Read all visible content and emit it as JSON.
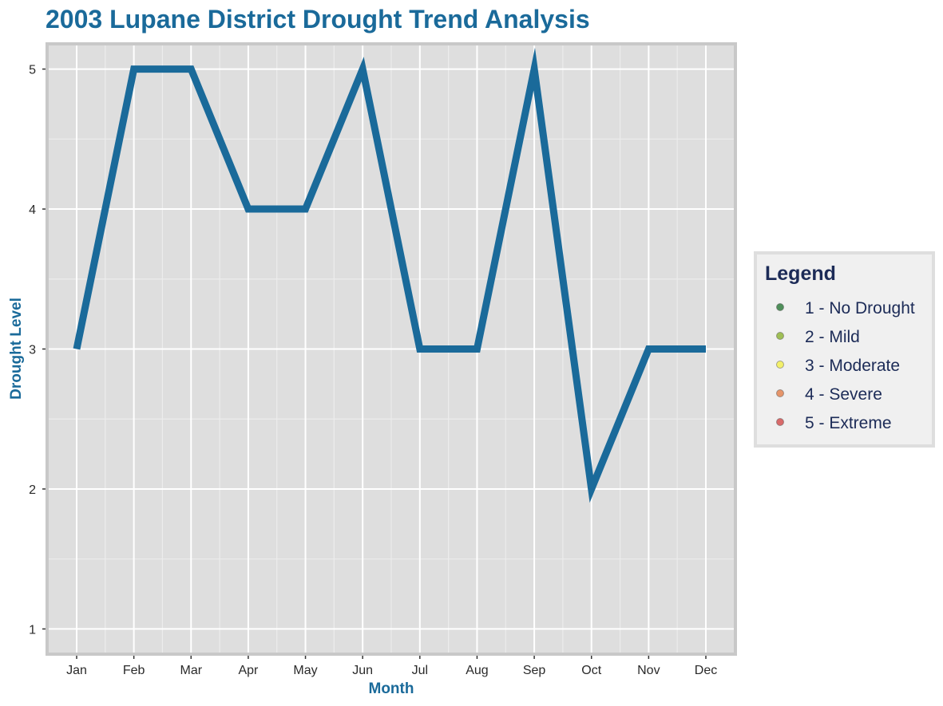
{
  "colors": {
    "title": "#1a6a9a",
    "line": "#1a6a9a",
    "panel_bg": "#dedede",
    "panel_border": "#c8c8c8",
    "grid_major": "#ffffff",
    "grid_minor": "#ececec",
    "legend_bg": "#f0f0f0",
    "legend_border": "#dedede",
    "legend_text": "#1c2b57"
  },
  "chart_data": {
    "type": "line",
    "title": "2003 Lupane District Drought Trend Analysis",
    "xlabel": "Month",
    "ylabel": "Drought Level",
    "categories": [
      "Jan",
      "Feb",
      "Mar",
      "Apr",
      "May",
      "Jun",
      "Jul",
      "Aug",
      "Sep",
      "Oct",
      "Nov",
      "Dec"
    ],
    "series": [
      {
        "values": [
          3,
          5,
          5,
          4,
          4,
          5,
          3,
          3,
          5,
          2,
          3,
          3
        ]
      }
    ],
    "ylim": [
      0.82,
      5.18
    ],
    "yticks": [
      "1",
      "2",
      "3",
      "4",
      "5"
    ],
    "grid": true,
    "legend": {
      "title": "Legend",
      "placement": "right",
      "items": [
        {
          "label": "1 - No Drought",
          "color": "#4f8f5a"
        },
        {
          "label": "2 - Mild",
          "color": "#9fbf55"
        },
        {
          "label": "3 - Moderate",
          "color": "#f3f06a"
        },
        {
          "label": "4 - Severe",
          "color": "#e6956a"
        },
        {
          "label": "5 - Extreme",
          "color": "#d96a6a"
        }
      ]
    }
  }
}
